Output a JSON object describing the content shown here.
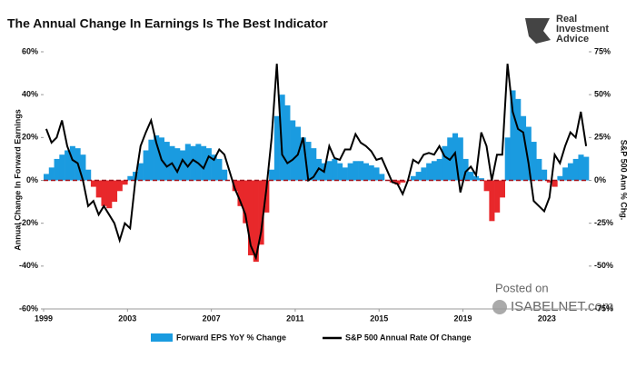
{
  "chart_data": {
    "type": "bar-line",
    "title": "The Annual Change In Earnings Is The Best Indicator",
    "logo": "Real Investment Advice",
    "watermark": [
      "Posted on",
      "ISABELNET.com"
    ],
    "ylabel": "Annual Change In Forward Earnings",
    "y2label": "S&P 500  Ann % Chg.",
    "xlim": [
      1999,
      2025
    ],
    "xticks": [
      1999,
      2003,
      2007,
      2011,
      2015,
      2019,
      2023
    ],
    "ylim": [
      -60,
      60
    ],
    "yticks": [
      {
        "value": -60,
        "label": "-60%"
      },
      {
        "value": -40,
        "label": "-40%"
      },
      {
        "value": -20,
        "label": "-20%"
      },
      {
        "value": 0,
        "label": "0%"
      },
      {
        "value": 20,
        "label": "20%"
      },
      {
        "value": 40,
        "label": "40%"
      },
      {
        "value": 60,
        "label": "60%"
      }
    ],
    "y2lim": [
      -75,
      75
    ],
    "y2ticks": [
      {
        "value": -75,
        "label": "-75%"
      },
      {
        "value": -50,
        "label": "-50%"
      },
      {
        "value": -25,
        "label": "-25%"
      },
      {
        "value": 0,
        "label": "0%"
      },
      {
        "value": 25,
        "label": "25%"
      },
      {
        "value": 50,
        "label": "50%"
      },
      {
        "value": 75,
        "label": "75%"
      }
    ],
    "x": [
      1999,
      1999.25,
      1999.5,
      1999.75,
      2000,
      2000.25,
      2000.5,
      2000.75,
      2001,
      2001.25,
      2001.5,
      2001.75,
      2002,
      2002.25,
      2002.5,
      2002.75,
      2003,
      2003.25,
      2003.5,
      2003.75,
      2004,
      2004.25,
      2004.5,
      2004.75,
      2005,
      2005.25,
      2005.5,
      2005.75,
      2006,
      2006.25,
      2006.5,
      2006.75,
      2007,
      2007.25,
      2007.5,
      2007.75,
      2008,
      2008.25,
      2008.5,
      2008.75,
      2009,
      2009.25,
      2009.5,
      2009.75,
      2010,
      2010.25,
      2010.5,
      2010.75,
      2011,
      2011.25,
      2011.5,
      2011.75,
      2012,
      2012.25,
      2012.5,
      2012.75,
      2013,
      2013.25,
      2013.5,
      2013.75,
      2014,
      2014.25,
      2014.5,
      2014.75,
      2015,
      2015.25,
      2015.5,
      2015.75,
      2016,
      2016.25,
      2016.5,
      2016.75,
      2017,
      2017.25,
      2017.5,
      2017.75,
      2018,
      2018.25,
      2018.5,
      2018.75,
      2019,
      2019.25,
      2019.5,
      2019.75,
      2020,
      2020.25,
      2020.5,
      2020.75,
      2021,
      2021.25,
      2021.5,
      2021.75,
      2022,
      2022.25,
      2022.5,
      2022.75,
      2023,
      2023.25,
      2023.5,
      2023.75,
      2024,
      2024.25,
      2024.5,
      2024.75
    ],
    "series": [
      {
        "name": "Forward EPS YoY % Change",
        "color": "#1a9be0",
        "negative_color": "#e8282b",
        "values": [
          3,
          6,
          10,
          12,
          14,
          16,
          15,
          12,
          5,
          -3,
          -8,
          -12,
          -13,
          -10,
          -5,
          -2,
          2,
          4,
          8,
          14,
          19,
          21,
          20,
          18,
          16,
          15,
          14,
          17,
          16,
          17,
          16,
          15,
          12,
          10,
          5,
          0,
          -5,
          -12,
          -20,
          -35,
          -38,
          -30,
          -15,
          5,
          30,
          40,
          35,
          28,
          25,
          20,
          18,
          15,
          10,
          8,
          9,
          10,
          8,
          6,
          8,
          9,
          9,
          8,
          7,
          6,
          3,
          0,
          -1,
          -2,
          -1,
          0,
          2,
          4,
          6,
          8,
          9,
          10,
          16,
          20,
          22,
          20,
          10,
          4,
          2,
          1,
          -5,
          -19,
          -15,
          -8,
          20,
          42,
          38,
          30,
          25,
          18,
          10,
          5,
          -1,
          -3,
          2,
          6,
          8,
          10,
          12,
          11
        ]
      },
      {
        "name": "S&P 500 Annual Rate Of Change",
        "color": "#000000",
        "axis": "y2",
        "values": [
          30,
          22,
          25,
          35,
          20,
          12,
          10,
          0,
          -15,
          -12,
          -20,
          -15,
          -20,
          -25,
          -35,
          -25,
          -28,
          0,
          20,
          28,
          35,
          22,
          12,
          8,
          10,
          5,
          12,
          8,
          12,
          10,
          7,
          14,
          12,
          18,
          15,
          5,
          -5,
          -12,
          -20,
          -38,
          -45,
          -30,
          -5,
          25,
          68,
          15,
          10,
          12,
          15,
          25,
          0,
          2,
          7,
          5,
          20,
          13,
          12,
          18,
          18,
          27,
          22,
          20,
          17,
          12,
          13,
          6,
          -1,
          -2,
          -8,
          0,
          12,
          10,
          15,
          16,
          15,
          20,
          14,
          12,
          16,
          -7,
          5,
          8,
          3,
          28,
          20,
          0,
          15,
          15,
          68,
          40,
          30,
          28,
          10,
          -12,
          -15,
          -18,
          -10,
          15,
          10,
          20,
          28,
          25,
          40,
          20
        ]
      }
    ]
  }
}
